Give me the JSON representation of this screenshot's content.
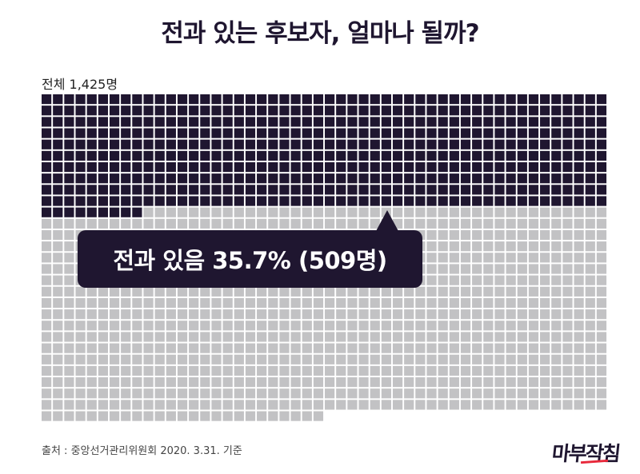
{
  "title": "전과 있는 후보자, 얼마나 될까?",
  "total_label": "전체 1,425명",
  "callout": "전과 있음 35.7% (509명)",
  "source": "출처 :  중앙선거관리위원회 2020. 3.31. 기준",
  "logo": "마부작침",
  "colors": {
    "highlight": "#1f1630",
    "rest": "#c2c2c4",
    "logo_accent": "#e8283a"
  },
  "chart_data": {
    "type": "waffle",
    "total": 1425,
    "columns": 50,
    "series": [
      {
        "name": "전과 있음",
        "value": 509,
        "percent": 35.7,
        "color": "#1f1630"
      },
      {
        "value": 916,
        "color": "#c2c2c4"
      }
    ]
  }
}
